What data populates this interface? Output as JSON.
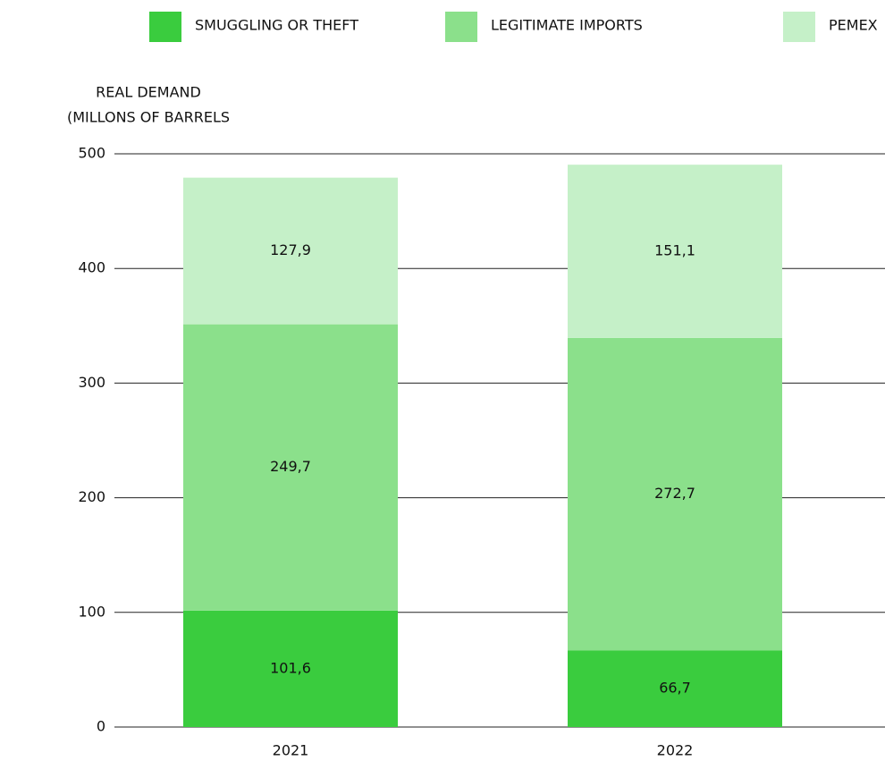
{
  "chart_data": {
    "type": "stacked_bar",
    "y_label": [
      "REAL DEMAND",
      "(MILLONS OF BARRELS"
    ],
    "categories": [
      "2021",
      "2022"
    ],
    "series": [
      {
        "name": "SMUGGLING OR THEFT",
        "color": "#3acc3e",
        "values": [
          101.6,
          66.7
        ],
        "value_labels": [
          "101,6",
          "66,7"
        ]
      },
      {
        "name": "LEGITIMATE IMPORTS",
        "color": "#8be08b",
        "values": [
          249.7,
          272.7
        ],
        "value_labels": [
          "249,7",
          "272,7"
        ]
      },
      {
        "name": "PEMEX",
        "color": "#c5f0c8",
        "values": [
          127.9,
          151.1
        ],
        "value_labels": [
          "127,9",
          "151,1"
        ]
      }
    ],
    "ylim": [
      0,
      500
    ],
    "yticks": [
      0,
      100,
      200,
      300,
      400,
      500
    ],
    "grid": true,
    "legend": "top"
  }
}
